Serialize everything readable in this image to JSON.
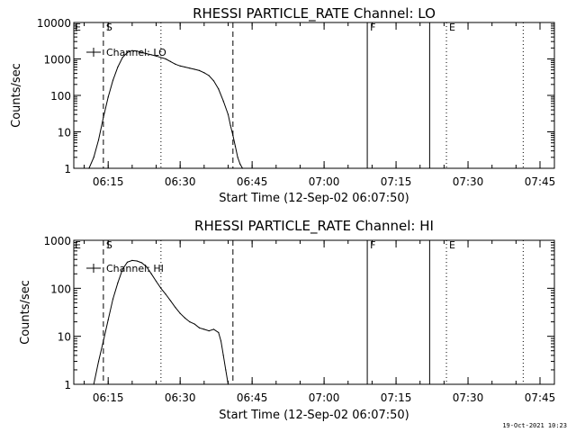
{
  "footer": {
    "date_stamp": "19-Oct-2021 10:23"
  },
  "chart_data": [
    {
      "type": "line",
      "title": "RHESSI PARTICLE_RATE Channel: LO",
      "xlabel": "Start Time (12-Sep-02 06:07:50)",
      "ylabel": "Counts/sec",
      "yscale": "log",
      "ylim": [
        1,
        10000
      ],
      "xlim": [
        "06:07:50",
        "07:48:00"
      ],
      "x_ticks": [
        "06:15",
        "06:30",
        "06:45",
        "07:00",
        "07:15",
        "07:30",
        "07:45"
      ],
      "y_ticks": [
        "1",
        "10",
        "100",
        "1000",
        "10000"
      ],
      "legend": {
        "position": "top-left",
        "entries": [
          "Channel: LO"
        ]
      },
      "series": [
        {
          "name": "Channel: LO",
          "x": [
            "06:11:00",
            "06:12:00",
            "06:13:00",
            "06:14:00",
            "06:15:00",
            "06:16:00",
            "06:17:00",
            "06:18:00",
            "06:19:00",
            "06:20:00",
            "06:21:00",
            "06:22:00",
            "06:23:00",
            "06:24:00",
            "06:25:00",
            "06:26:00",
            "06:27:00",
            "06:28:00",
            "06:29:00",
            "06:30:00",
            "06:31:00",
            "06:32:00",
            "06:33:00",
            "06:34:00",
            "06:35:00",
            "06:36:00",
            "06:37:00",
            "06:38:00",
            "06:39:00",
            "06:40:00",
            "06:40:30",
            "06:41:00",
            "06:41:30",
            "06:42:00",
            "06:42:30",
            "06:43:00"
          ],
          "y": [
            1,
            2,
            6,
            25,
            90,
            260,
            600,
            1100,
            1500,
            1700,
            1650,
            1500,
            1400,
            1300,
            1200,
            1100,
            1000,
            850,
            720,
            640,
            600,
            560,
            520,
            480,
            420,
            350,
            250,
            150,
            70,
            30,
            15,
            8,
            4,
            2,
            1.3,
            1
          ]
        }
      ],
      "markers": [
        {
          "type": "dashed",
          "x": "06:14:00",
          "label": "S"
        },
        {
          "type": "dotted",
          "x": "06:26:00",
          "label": ""
        },
        {
          "type": "dashed",
          "x": "06:41:00",
          "label": ""
        },
        {
          "type": "solid",
          "x": "07:09:00",
          "label": "F"
        },
        {
          "type": "solid",
          "x": "07:22:00",
          "label": ""
        },
        {
          "type": "dotted",
          "x": "07:25:30",
          "label": "E"
        },
        {
          "type": "dotted",
          "x": "07:41:30",
          "label": ""
        }
      ],
      "corner_label": "E"
    },
    {
      "type": "line",
      "title": "RHESSI PARTICLE_RATE Channel: HI",
      "xlabel": "Start Time (12-Sep-02 06:07:50)",
      "ylabel": "Counts/sec",
      "yscale": "log",
      "ylim": [
        1,
        1000
      ],
      "xlim": [
        "06:07:50",
        "07:48:00"
      ],
      "x_ticks": [
        "06:15",
        "06:30",
        "06:45",
        "07:00",
        "07:15",
        "07:30",
        "07:45"
      ],
      "y_ticks": [
        "1",
        "10",
        "100",
        "1000"
      ],
      "legend": {
        "position": "top-left",
        "entries": [
          "Channel: HI"
        ]
      },
      "series": [
        {
          "name": "Channel: HI",
          "x": [
            "06:12:00",
            "06:13:00",
            "06:14:00",
            "06:15:00",
            "06:16:00",
            "06:17:00",
            "06:18:00",
            "06:19:00",
            "06:20:00",
            "06:21:00",
            "06:22:00",
            "06:23:00",
            "06:24:00",
            "06:25:00",
            "06:26:00",
            "06:27:00",
            "06:28:00",
            "06:29:00",
            "06:30:00",
            "06:31:00",
            "06:32:00",
            "06:33:00",
            "06:34:00",
            "06:35:00",
            "06:36:00",
            "06:37:00",
            "06:38:00",
            "06:38:30",
            "06:39:00",
            "06:39:30",
            "06:40:00"
          ],
          "y": [
            1,
            3,
            8,
            22,
            60,
            130,
            250,
            350,
            380,
            370,
            340,
            280,
            200,
            140,
            100,
            75,
            55,
            40,
            30,
            24,
            20,
            18,
            15,
            14,
            13,
            14,
            12,
            8,
            4,
            2,
            1
          ]
        }
      ],
      "markers": [
        {
          "type": "dashed",
          "x": "06:14:00",
          "label": "S"
        },
        {
          "type": "dotted",
          "x": "06:26:00",
          "label": ""
        },
        {
          "type": "dashed",
          "x": "06:41:00",
          "label": ""
        },
        {
          "type": "solid",
          "x": "07:09:00",
          "label": "F"
        },
        {
          "type": "solid",
          "x": "07:22:00",
          "label": ""
        },
        {
          "type": "dotted",
          "x": "07:25:30",
          "label": "E"
        },
        {
          "type": "dotted",
          "x": "07:41:30",
          "label": ""
        }
      ],
      "corner_label": "E"
    }
  ]
}
